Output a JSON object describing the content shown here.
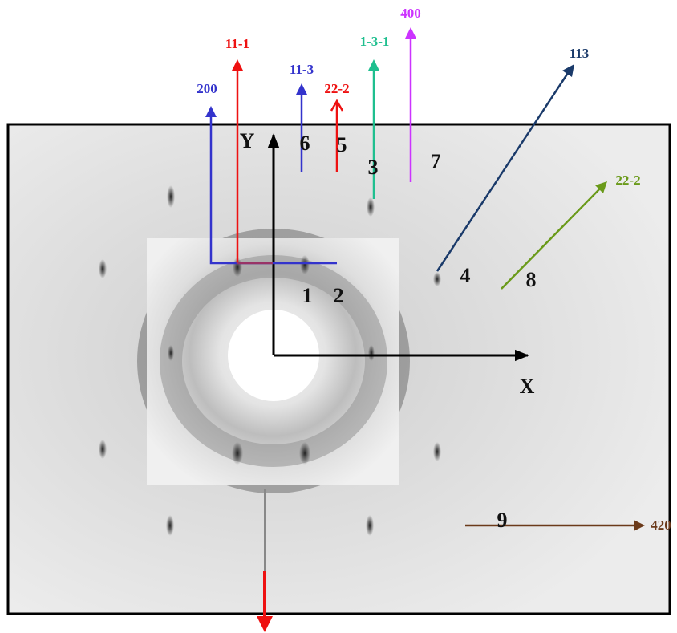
{
  "axes": {
    "y": "Y",
    "x": "X"
  },
  "spots": [
    "1",
    "2",
    "3",
    "4",
    "5",
    "6",
    "7",
    "8",
    "9"
  ],
  "annotations": [
    {
      "label": "200"
    },
    {
      "label": "11-1"
    },
    {
      "label": "11-3"
    },
    {
      "label": "22-2"
    },
    {
      "label": "1-3-1"
    },
    {
      "label": "400"
    },
    {
      "label": "113"
    },
    {
      "label": "22-2"
    },
    {
      "label": "420"
    }
  ]
}
